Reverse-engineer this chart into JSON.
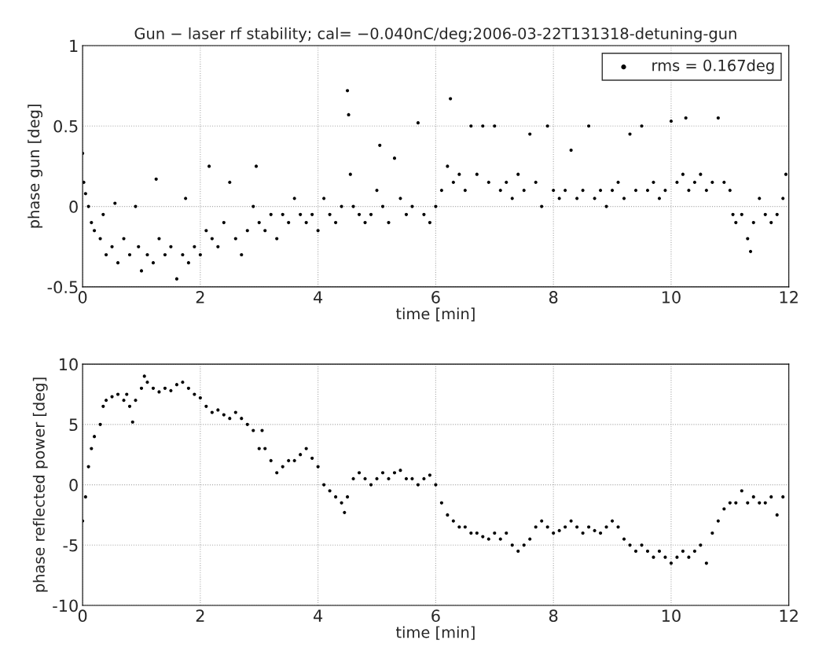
{
  "chart_data": [
    {
      "type": "scatter",
      "title": "Gun − laser rf stability; cal= −0.040nC/deg;2006-03-22T131318-detuning-gun",
      "xlabel": "time [min]",
      "ylabel": "phase gun [deg]",
      "xlim": [
        0,
        12
      ],
      "xticks": [
        0,
        2,
        4,
        6,
        8,
        10,
        12
      ],
      "ylim": [
        -0.5,
        1
      ],
      "yticks": [
        -0.5,
        0,
        0.5,
        1
      ],
      "grid": true,
      "legend": "top right",
      "marker": "circle",
      "series": [
        {
          "name": "rms = 0.167deg",
          "color": "#000000",
          "x": [
            0.0,
            0.02,
            0.05,
            0.1,
            0.15,
            0.2,
            0.3,
            0.35,
            0.4,
            0.5,
            0.55,
            0.6,
            0.7,
            0.8,
            0.9,
            0.95,
            1.0,
            1.1,
            1.2,
            1.25,
            1.3,
            1.4,
            1.5,
            1.6,
            1.7,
            1.75,
            1.8,
            1.9,
            2.0,
            2.1,
            2.15,
            2.2,
            2.3,
            2.4,
            2.5,
            2.6,
            2.7,
            2.8,
            2.9,
            2.95,
            3.0,
            3.1,
            3.2,
            3.3,
            3.4,
            3.5,
            3.6,
            3.7,
            3.8,
            3.9,
            4.0,
            4.1,
            4.2,
            4.3,
            4.4,
            4.5,
            4.52,
            4.55,
            4.6,
            4.7,
            4.8,
            4.9,
            5.0,
            5.05,
            5.1,
            5.2,
            5.3,
            5.4,
            5.5,
            5.6,
            5.7,
            5.8,
            5.9,
            6.0,
            6.1,
            6.2,
            6.25,
            6.3,
            6.4,
            6.5,
            6.6,
            6.7,
            6.8,
            6.9,
            7.0,
            7.1,
            7.2,
            7.3,
            7.4,
            7.5,
            7.6,
            7.7,
            7.8,
            7.9,
            8.0,
            8.1,
            8.2,
            8.3,
            8.4,
            8.5,
            8.6,
            8.7,
            8.8,
            8.9,
            9.0,
            9.1,
            9.2,
            9.3,
            9.4,
            9.5,
            9.6,
            9.7,
            9.8,
            9.9,
            10.0,
            10.1,
            10.2,
            10.25,
            10.3,
            10.4,
            10.5,
            10.6,
            10.7,
            10.8,
            10.9,
            11.0,
            11.05,
            11.1,
            11.2,
            11.3,
            11.35,
            11.4,
            11.5,
            11.6,
            11.7,
            11.8,
            11.9,
            11.95
          ],
          "values": [
            0.33,
            0.15,
            0.08,
            0.0,
            -0.1,
            -0.15,
            -0.2,
            -0.05,
            -0.3,
            -0.25,
            0.02,
            -0.35,
            -0.2,
            -0.3,
            0.0,
            -0.25,
            -0.4,
            -0.3,
            -0.35,
            0.17,
            -0.2,
            -0.3,
            -0.25,
            -0.45,
            -0.3,
            0.05,
            -0.35,
            -0.25,
            -0.3,
            -0.15,
            0.25,
            -0.2,
            -0.25,
            -0.1,
            0.15,
            -0.2,
            -0.3,
            -0.15,
            0.0,
            0.25,
            -0.1,
            -0.15,
            -0.05,
            -0.2,
            -0.05,
            -0.1,
            0.05,
            -0.05,
            -0.1,
            -0.05,
            -0.15,
            0.05,
            -0.05,
            -0.1,
            0.0,
            0.72,
            0.57,
            0.2,
            0.0,
            -0.05,
            -0.1,
            -0.05,
            0.1,
            0.38,
            0.0,
            -0.1,
            0.3,
            0.05,
            -0.05,
            0.0,
            0.52,
            -0.05,
            -0.1,
            0.0,
            0.1,
            0.25,
            0.67,
            0.15,
            0.2,
            0.1,
            0.5,
            0.2,
            0.5,
            0.15,
            0.5,
            0.1,
            0.15,
            0.05,
            0.2,
            0.1,
            0.45,
            0.15,
            0.0,
            0.5,
            0.1,
            0.05,
            0.1,
            0.35,
            0.05,
            0.1,
            0.5,
            0.05,
            0.1,
            0.0,
            0.1,
            0.15,
            0.05,
            0.45,
            0.1,
            0.5,
            0.1,
            0.15,
            0.05,
            0.1,
            0.53,
            0.15,
            0.2,
            0.55,
            0.1,
            0.15,
            0.2,
            0.1,
            0.15,
            0.55,
            0.15,
            0.1,
            -0.05,
            -0.1,
            -0.05,
            -0.2,
            -0.28,
            -0.1,
            0.05,
            -0.05,
            -0.1,
            -0.05,
            0.05,
            0.2
          ]
        }
      ]
    },
    {
      "type": "scatter",
      "xlabel": "time [min]",
      "ylabel": "phase reflected power [deg]",
      "xlim": [
        0,
        12
      ],
      "xticks": [
        0,
        2,
        4,
        6,
        8,
        10,
        12
      ],
      "ylim": [
        -10,
        10
      ],
      "yticks": [
        -10,
        -5,
        0,
        5,
        10
      ],
      "grid": true,
      "marker": "circle",
      "series": [
        {
          "color": "#000000",
          "x": [
            0.0,
            0.05,
            0.1,
            0.15,
            0.2,
            0.3,
            0.35,
            0.4,
            0.5,
            0.6,
            0.7,
            0.75,
            0.8,
            0.85,
            0.9,
            1.0,
            1.05,
            1.1,
            1.2,
            1.3,
            1.4,
            1.5,
            1.6,
            1.7,
            1.8,
            1.9,
            2.0,
            2.1,
            2.2,
            2.3,
            2.4,
            2.5,
            2.6,
            2.7,
            2.8,
            2.9,
            3.0,
            3.05,
            3.1,
            3.2,
            3.3,
            3.4,
            3.5,
            3.6,
            3.7,
            3.8,
            3.9,
            4.0,
            4.1,
            4.2,
            4.3,
            4.4,
            4.45,
            4.5,
            4.6,
            4.7,
            4.8,
            4.9,
            5.0,
            5.1,
            5.2,
            5.3,
            5.4,
            5.5,
            5.6,
            5.7,
            5.8,
            5.9,
            6.0,
            6.1,
            6.2,
            6.3,
            6.4,
            6.5,
            6.6,
            6.7,
            6.8,
            6.9,
            7.0,
            7.1,
            7.2,
            7.3,
            7.4,
            7.5,
            7.6,
            7.7,
            7.8,
            7.9,
            8.0,
            8.1,
            8.2,
            8.3,
            8.4,
            8.5,
            8.6,
            8.7,
            8.8,
            8.9,
            9.0,
            9.1,
            9.2,
            9.3,
            9.4,
            9.5,
            9.6,
            9.7,
            9.8,
            9.9,
            10.0,
            10.1,
            10.2,
            10.3,
            10.4,
            10.5,
            10.6,
            10.7,
            10.8,
            10.9,
            11.0,
            11.1,
            11.2,
            11.3,
            11.4,
            11.5,
            11.6,
            11.7,
            11.8,
            11.9
          ],
          "values": [
            -3,
            -1,
            1.5,
            3,
            4,
            5,
            6.5,
            7,
            7.3,
            7.5,
            7,
            7.5,
            6.5,
            5.2,
            7,
            8,
            9,
            8.5,
            8,
            7.7,
            8,
            7.8,
            8.3,
            8.5,
            8,
            7.5,
            7.2,
            6.5,
            6,
            6.2,
            5.8,
            5.5,
            6,
            5.5,
            5,
            4.5,
            3,
            4.5,
            3,
            2,
            1,
            1.5,
            2,
            2,
            2.5,
            3,
            2.2,
            1.5,
            0,
            -0.5,
            -1,
            -1.5,
            -2.3,
            -1,
            0.5,
            1,
            0.5,
            0,
            0.5,
            1,
            0.5,
            1,
            1.2,
            0.5,
            0.5,
            0,
            0.5,
            0.8,
            0,
            -1.5,
            -2.5,
            -3,
            -3.5,
            -3.5,
            -4,
            -4,
            -4.3,
            -4.5,
            -4,
            -4.5,
            -4,
            -5,
            -5.5,
            -5,
            -4.5,
            -3.5,
            -3,
            -3.5,
            -4,
            -3.8,
            -3.5,
            -3,
            -3.5,
            -4,
            -3.5,
            -3.8,
            -4,
            -3.5,
            -3,
            -3.5,
            -4.5,
            -5,
            -5.5,
            -5,
            -5.5,
            -6,
            -5.5,
            -6,
            -6.5,
            -6,
            -5.5,
            -6,
            -5.5,
            -5,
            -6.5,
            -4,
            -3,
            -2,
            -1.5,
            -1.5,
            -0.5,
            -1.5,
            -1,
            -1.5,
            -1.5,
            -1,
            -2.5,
            -1
          ]
        }
      ]
    }
  ]
}
